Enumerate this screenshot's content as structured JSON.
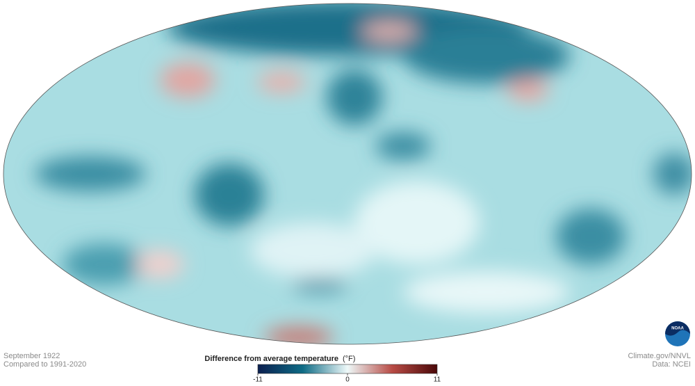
{
  "caption": {
    "date": "September 1922",
    "baseline": "Compared to 1991-2020"
  },
  "credits": {
    "source": "Climate.gov/NNVL",
    "data": "Data: NCEI",
    "logo": "NOAA"
  },
  "legend": {
    "title": "Difference from average temperature",
    "unit": "(°F)",
    "ticks": [
      -11,
      0,
      11
    ]
  }
}
